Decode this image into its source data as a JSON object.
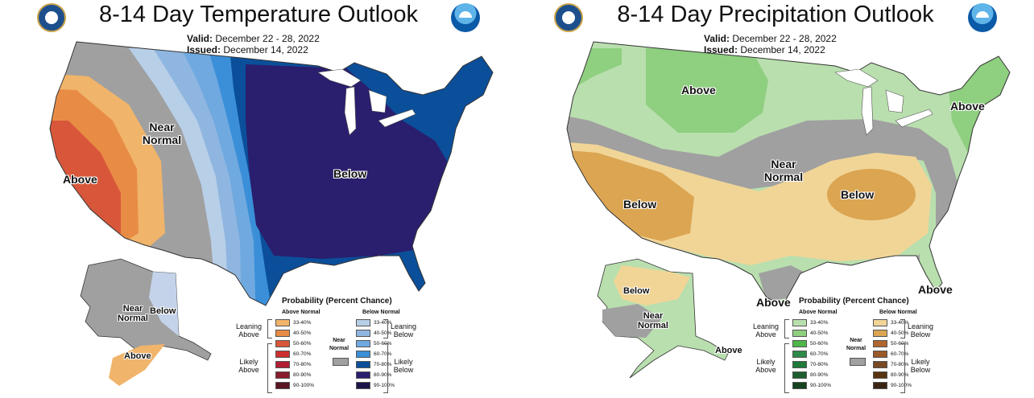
{
  "panels": {
    "temp": {
      "title": "8-14 Day Temperature Outlook",
      "valid_label": "Valid:",
      "valid_value": "December 22 - 28, 2022",
      "issued_label": "Issued:",
      "issued_value": "December 14, 2022",
      "map_labels": {
        "above_west": "Above",
        "near_normal_west": "Near Normal",
        "below_central": "Below",
        "alaska_near_normal": "Near Normal",
        "alaska_below": "Below",
        "alaska_above": "Above"
      },
      "legend": {
        "title": "Probability (Percent Chance)",
        "head_left": "Above Normal",
        "head_right": "Below Normal",
        "left_ranges": [
          "33-40%",
          "40-50%",
          "50-60%",
          "60-70%",
          "70-80%",
          "80-90%",
          "90-100%"
        ],
        "right_ranges": [
          "33-40%",
          "40-50%",
          "50-60%",
          "60-70%",
          "70-80%",
          "80-90%",
          "90-100%"
        ],
        "left_colors": [
          "#f0b46a",
          "#e88c45",
          "#d8573a",
          "#cc2f2f",
          "#b11f34",
          "#8a1b2e",
          "#5a1622"
        ],
        "right_colors": [
          "#b8cfe8",
          "#8fb6e0",
          "#6fa9e0",
          "#3a8fd8",
          "#0b4f9a",
          "#2a1e6e",
          "#1b1447"
        ],
        "leaning_left": "Leaning Above",
        "likely_left": "Likely Above",
        "leaning_right": "Leaning Below",
        "likely_right": "Likely Below",
        "near_normal": "Near Normal",
        "near_normal_color": "#a0a0a0"
      }
    },
    "precip": {
      "title": "8-14 Day Precipitation Outlook",
      "valid_label": "Valid:",
      "valid_value": "December 22 - 28, 2022",
      "issued_label": "Issued:",
      "issued_value": "December 14, 2022",
      "map_labels": {
        "above_north": "Above",
        "above_northeast": "Above",
        "near_normal_central": "Near Normal",
        "below_southwest": "Below",
        "below_southeast": "Below",
        "above_south_texas": "Above",
        "above_florida": "Above",
        "alaska_below": "Below",
        "alaska_near_normal": "Near Normal",
        "alaska_above": "Above"
      },
      "legend": {
        "title": "Probability (Percent Chance)",
        "head_left": "Above Normal",
        "head_right": "Below Normal",
        "left_ranges": [
          "33-40%",
          "40-50%",
          "50-60%",
          "60-70%",
          "70-80%",
          "80-90%",
          "90-100%"
        ],
        "right_ranges": [
          "33-40%",
          "40-50%",
          "50-60%",
          "60-70%",
          "70-80%",
          "80-90%",
          "90-100%"
        ],
        "left_colors": [
          "#b9dfae",
          "#8fcf80",
          "#4fb64a",
          "#2f8a4a",
          "#1f7a3a",
          "#1e5e2e",
          "#15421f"
        ],
        "right_colors": [
          "#f1d597",
          "#dba552",
          "#b0652f",
          "#9a5a2a",
          "#7a4a24",
          "#5a3410",
          "#3a2414"
        ],
        "leaning_left": "Leaning Above",
        "likely_left": "Likely Above",
        "leaning_right": "Leaning Below",
        "likely_right": "Likely Below",
        "near_normal": "Near Normal",
        "near_normal_color": "#a0a0a0"
      }
    }
  }
}
